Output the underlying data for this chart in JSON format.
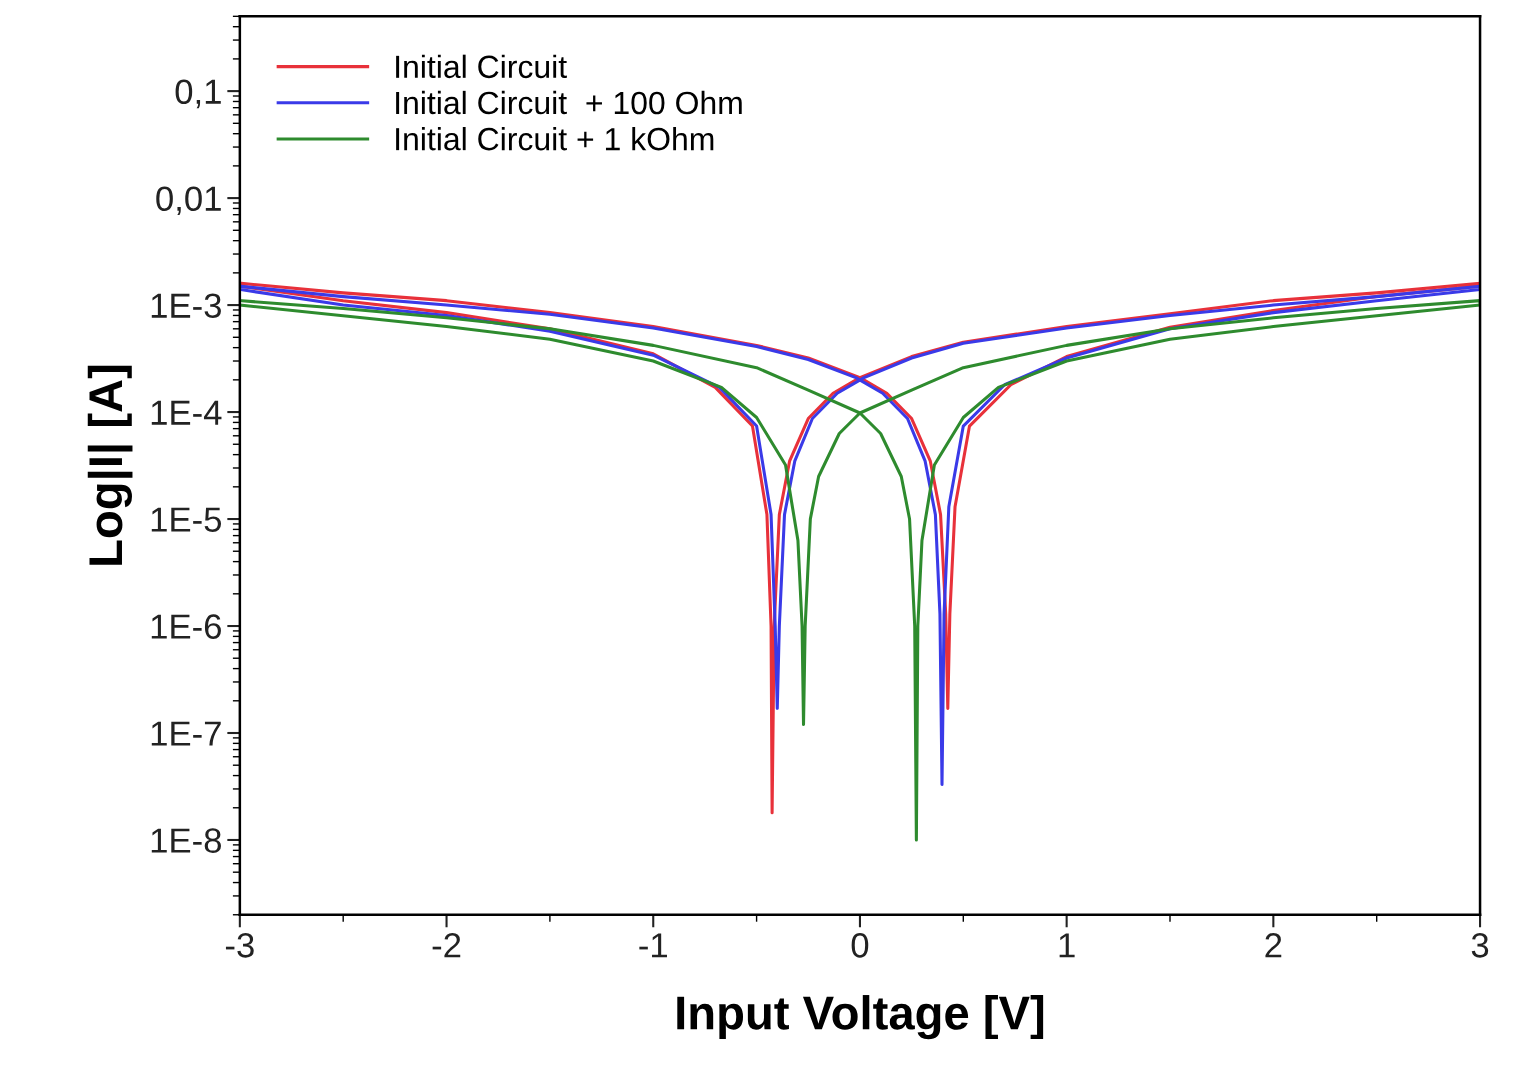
{
  "chart_data": {
    "type": "line",
    "xlabel": "Input Voltage [V]",
    "ylabel": "Log|I| [A]",
    "log": "y",
    "legend": "top left",
    "grid": false,
    "marker": "none",
    "line_style": "solid",
    "xlim": [
      -3,
      3
    ],
    "xticks": [
      -3,
      -2,
      -1,
      0,
      1,
      2,
      3
    ],
    "ylim": [
      2e-09,
      0.5
    ],
    "yticks": [
      {
        "value": 0.1,
        "label": "0,1"
      },
      {
        "value": 0.01,
        "label": "0,01"
      },
      {
        "value": 0.001,
        "label": "1E-3"
      },
      {
        "value": 0.0001,
        "label": "1E-4"
      },
      {
        "value": 1e-05,
        "label": "1E-5"
      },
      {
        "value": 1e-06,
        "label": "1E-6"
      },
      {
        "value": 1e-07,
        "label": "1E-7"
      },
      {
        "value": 1e-08,
        "label": "1E-8"
      }
    ],
    "series": [
      {
        "name": "Initial Circuit",
        "color": "#e8313a",
        "x": [
          -3,
          -2.5,
          -2,
          -1.5,
          -1,
          -0.7,
          -0.52,
          -0.45,
          -0.43,
          -0.425,
          -0.415,
          -0.39,
          -0.34,
          -0.25,
          -0.13,
          0,
          0.25,
          0.5,
          1,
          1.5,
          2,
          2.5,
          3,
          3,
          2.5,
          2,
          1.5,
          1,
          0.73,
          0.53,
          0.46,
          0.435,
          0.425,
          0.415,
          0.39,
          0.34,
          0.25,
          0.13,
          0,
          -0.25,
          -0.5,
          -1,
          -1.5,
          -2,
          -2.5,
          -3
        ],
        "values": [
          0.0015,
          0.0011,
          0.00085,
          0.0006,
          0.00035,
          0.00017,
          7.4e-05,
          1.1e-05,
          1e-06,
          1.8e-08,
          1e-06,
          1.1e-05,
          3.5e-05,
          8.7e-05,
          0.00015,
          0.00021,
          0.00033,
          0.00045,
          0.00063,
          0.00083,
          0.0011,
          0.0013,
          0.0016,
          0.0015,
          0.0012,
          0.00089,
          0.00062,
          0.00033,
          0.00018,
          7.4e-05,
          1.3e-05,
          1.3e-06,
          1.7e-07,
          1.3e-06,
          1.1e-05,
          3.5e-05,
          8.7e-05,
          0.00015,
          0.00021,
          0.00032,
          0.00042,
          0.00063,
          0.00085,
          0.0011,
          0.0013,
          0.0016
        ]
      },
      {
        "name": "Initial Circuit  + 100 Ohm",
        "color": "#3a3ae8",
        "x": [
          -3,
          -2.5,
          -2,
          -1.5,
          -1,
          -0.68,
          -0.5,
          -0.43,
          -0.41,
          -0.4,
          -0.39,
          -0.365,
          -0.315,
          -0.23,
          -0.11,
          0.02,
          0.25,
          0.5,
          1,
          1.5,
          2,
          2.5,
          3,
          3,
          2.5,
          2,
          1.5,
          1,
          0.7,
          0.5,
          0.43,
          0.407,
          0.397,
          0.387,
          0.365,
          0.315,
          0.23,
          0.11,
          -0.02,
          -0.25,
          -0.5,
          -1,
          -1.5,
          -2,
          -2.5,
          -3
        ],
        "values": [
          0.0014,
          0.001,
          0.0008,
          0.00057,
          0.00034,
          0.00017,
          7.4e-05,
          1.1e-05,
          1e-06,
          1.7e-07,
          1e-06,
          1.1e-05,
          3.5e-05,
          8.7e-05,
          0.00015,
          0.00021,
          0.00032,
          0.00044,
          0.00061,
          0.0008,
          0.001,
          0.0012,
          0.0015,
          0.0014,
          0.0011,
          0.00085,
          0.0006,
          0.00032,
          0.00018,
          7.4e-05,
          1.3e-05,
          1.3e-06,
          3.3e-08,
          1.3e-06,
          1.1e-05,
          3.5e-05,
          8.7e-05,
          0.00015,
          0.00021,
          0.00031,
          0.00041,
          0.00061,
          0.00082,
          0.001,
          0.0012,
          0.0015
        ]
      },
      {
        "name": "Initial Circuit + 1 kOhm",
        "color": "#2e8b2e",
        "x": [
          -3,
          -2,
          -1.5,
          -1,
          -0.67,
          -0.5,
          -0.36,
          -0.3,
          -0.28,
          -0.273,
          -0.265,
          -0.24,
          -0.2,
          -0.1,
          0,
          0.25,
          0.5,
          1,
          1.5,
          2,
          2.5,
          3,
          3,
          2,
          1.5,
          1,
          0.67,
          0.5,
          0.36,
          0.3,
          0.28,
          0.273,
          0.265,
          0.24,
          0.2,
          0.1,
          0,
          -0.25,
          -0.5,
          -1,
          -1.5,
          -2,
          -2.5,
          -3
        ],
        "values": [
          0.001,
          0.00063,
          0.00048,
          0.0003,
          0.00017,
          8.9e-05,
          3.2e-05,
          6.3e-06,
          1e-06,
          1.2e-07,
          1e-06,
          1e-05,
          2.5e-05,
          6.3e-05,
          9.8e-05,
          0.00016,
          0.00026,
          0.00042,
          0.0006,
          0.00076,
          0.00093,
          0.0011,
          0.001,
          0.00063,
          0.00048,
          0.0003,
          0.00017,
          8.9e-05,
          3.2e-05,
          6.3e-06,
          1e-06,
          1e-08,
          1e-06,
          1e-05,
          2.5e-05,
          6.3e-05,
          9.8e-05,
          0.00016,
          0.00026,
          0.00042,
          0.0006,
          0.00076,
          0.00093,
          0.0011
        ]
      }
    ]
  }
}
